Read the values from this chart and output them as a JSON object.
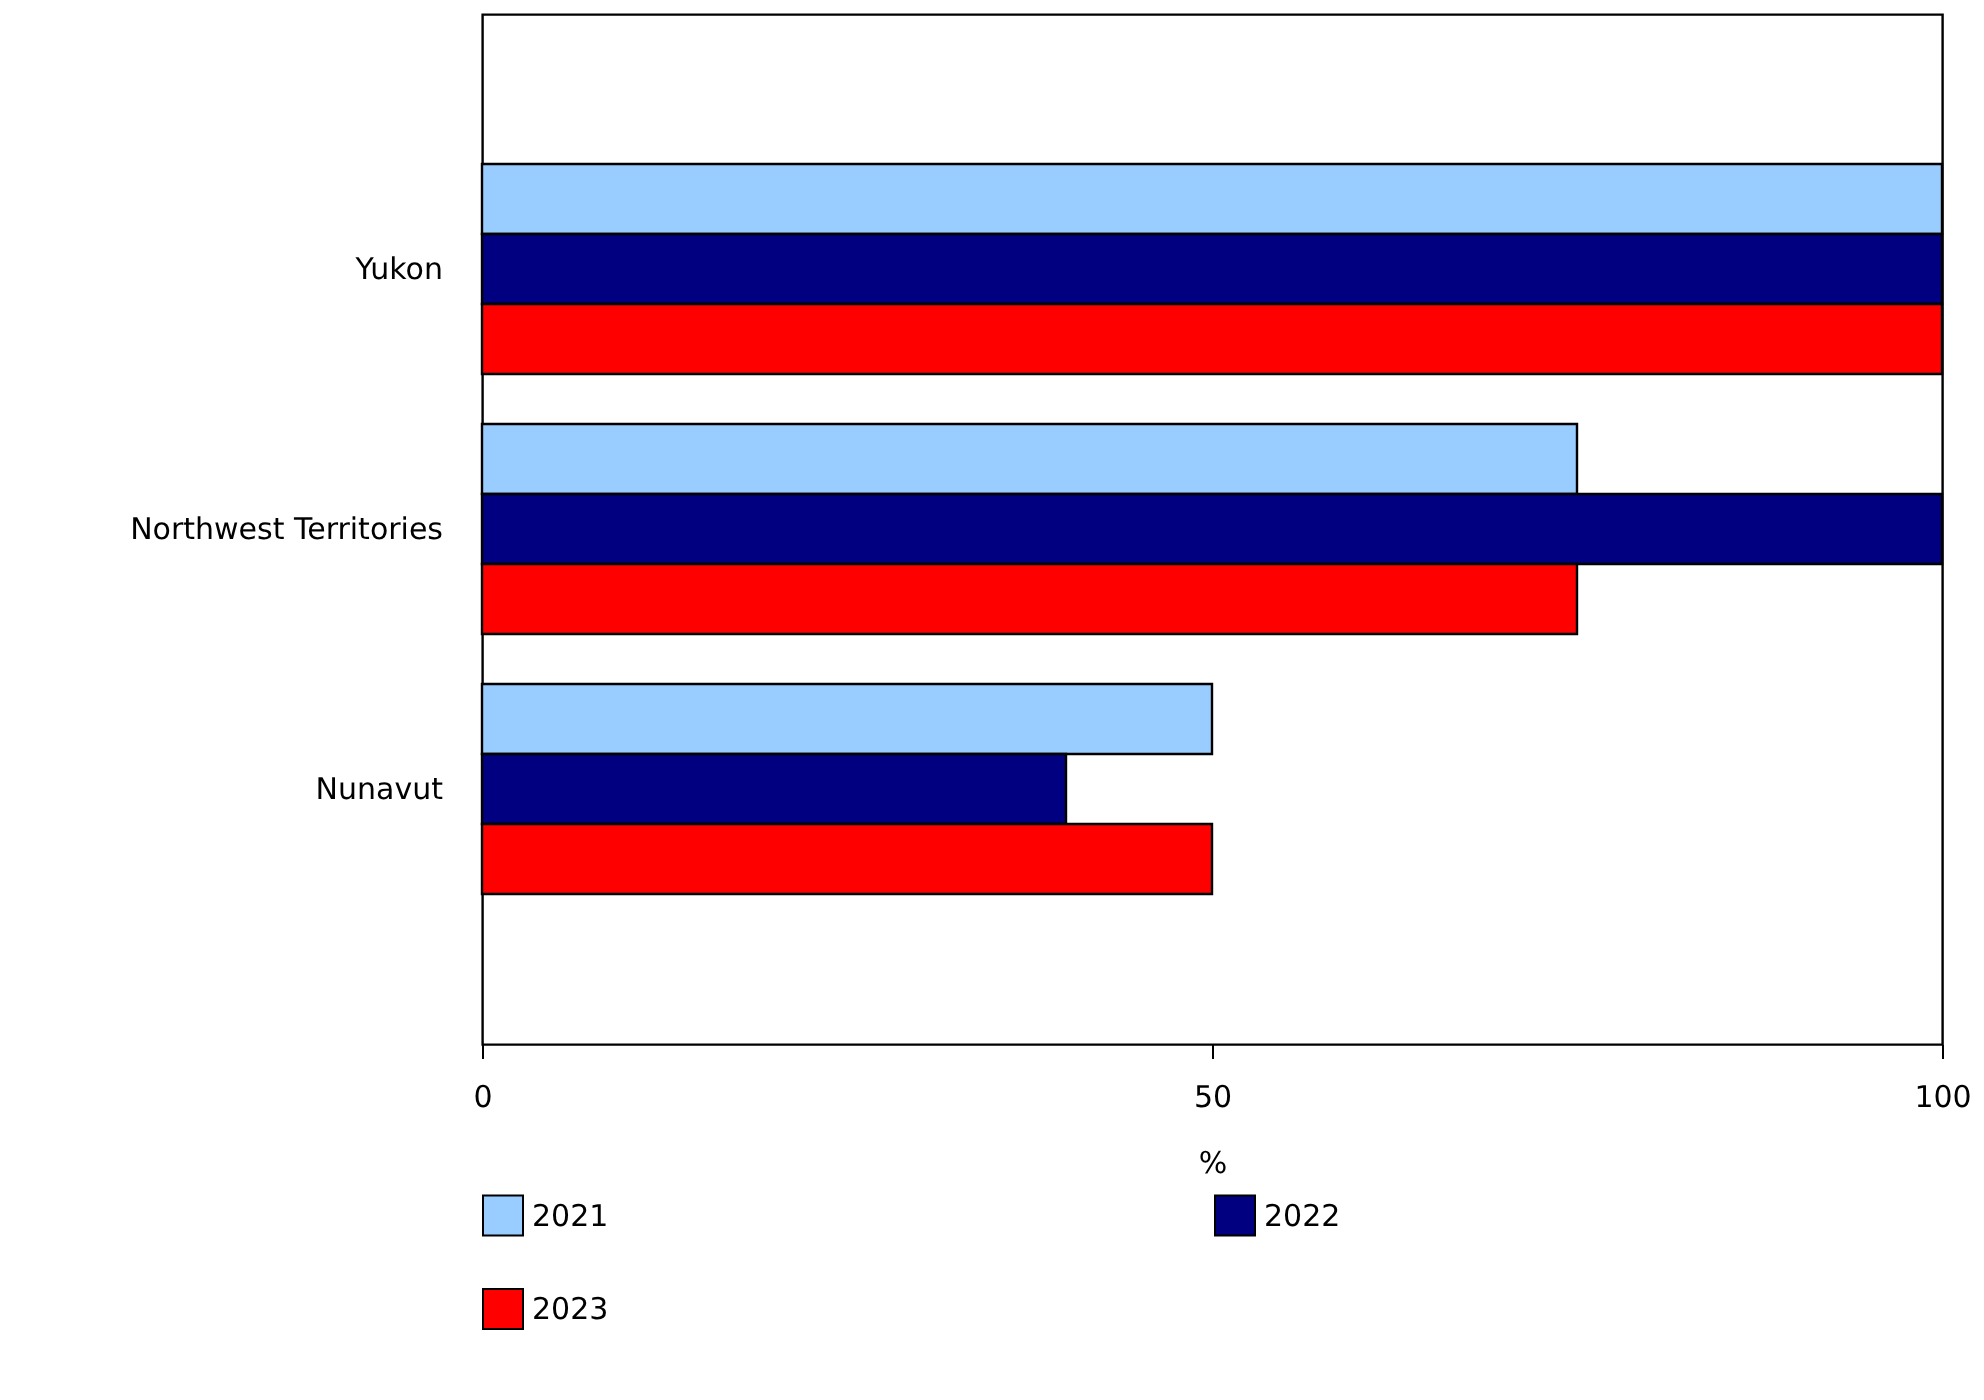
{
  "chart_data": {
    "type": "bar",
    "orientation": "horizontal",
    "categories": [
      "Yukon",
      "Northwest Territories",
      "Nunavut"
    ],
    "series": [
      {
        "name": "2021",
        "color": "#99ccff",
        "values": [
          100,
          75,
          50
        ]
      },
      {
        "name": "2022",
        "color": "#000080",
        "values": [
          100,
          100,
          40
        ]
      },
      {
        "name": "2023",
        "color": "#ff0000",
        "values": [
          100,
          75,
          50
        ]
      }
    ],
    "xlabel": "%",
    "xlim": [
      0,
      100
    ],
    "xticks": [
      0,
      50,
      100
    ],
    "grid": false,
    "legend": "bottom left"
  }
}
